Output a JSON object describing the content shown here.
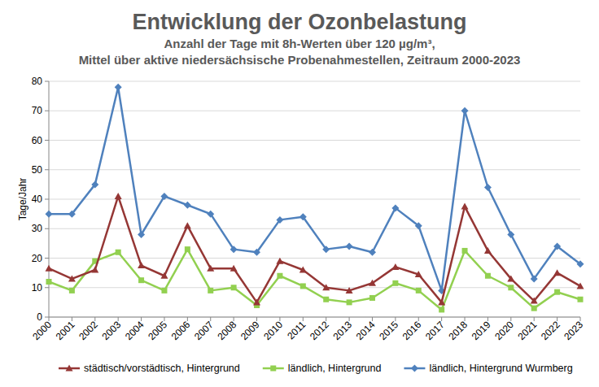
{
  "chart_data": {
    "type": "line",
    "title": "Entwicklung der Ozonbelastung",
    "subtitle": [
      "Anzahl der Tage mit 8h-Werten über 120 µg/m³,",
      "Mittel über aktive niedersächsische Probenahmestellen, Zeitraum 2000-2023"
    ],
    "y_label": "Tage/Jahr",
    "categories": [
      "2000",
      "2001",
      "2002",
      "2003",
      "2004",
      "2005",
      "2006",
      "2007",
      "2008",
      "2009",
      "2010",
      "2011",
      "2012",
      "2013",
      "2014",
      "2015",
      "2016",
      "2017",
      "2018",
      "2019",
      "2020",
      "2021",
      "2022",
      "2023"
    ],
    "series": [
      {
        "name": "städtisch/vorstädtisch, Hintergrund",
        "color": "#953735",
        "marker": "triangle",
        "values": [
          16.5,
          13,
          16,
          41,
          17.5,
          14,
          31,
          16.5,
          16.5,
          5,
          19,
          16,
          10,
          9,
          11.5,
          17,
          14.5,
          5,
          37.5,
          22.5,
          13,
          5.5,
          15,
          10.5
        ]
      },
      {
        "name": "ländlich, Hintergrund",
        "color": "#92d050",
        "marker": "square",
        "values": [
          12,
          9,
          19,
          22,
          12.5,
          9,
          23,
          9,
          10,
          4,
          14,
          10.5,
          6,
          5,
          6.5,
          11.5,
          9,
          2.5,
          22.5,
          14,
          10,
          3,
          8.5,
          6
        ]
      },
      {
        "name": "ländlich, Hintergrund Wurmberg",
        "color": "#4f81bd",
        "marker": "diamond",
        "values": [
          35,
          35,
          45,
          78,
          28,
          41,
          38,
          35,
          23,
          22,
          33,
          34,
          23,
          24,
          22,
          37,
          31,
          9,
          70,
          44,
          28,
          13,
          24,
          18
        ]
      }
    ],
    "ylim": [
      0,
      80
    ],
    "yticks": [
      0,
      10,
      20,
      30,
      40,
      50,
      60,
      70,
      80
    ],
    "grid": true,
    "legend": "bottom"
  }
}
